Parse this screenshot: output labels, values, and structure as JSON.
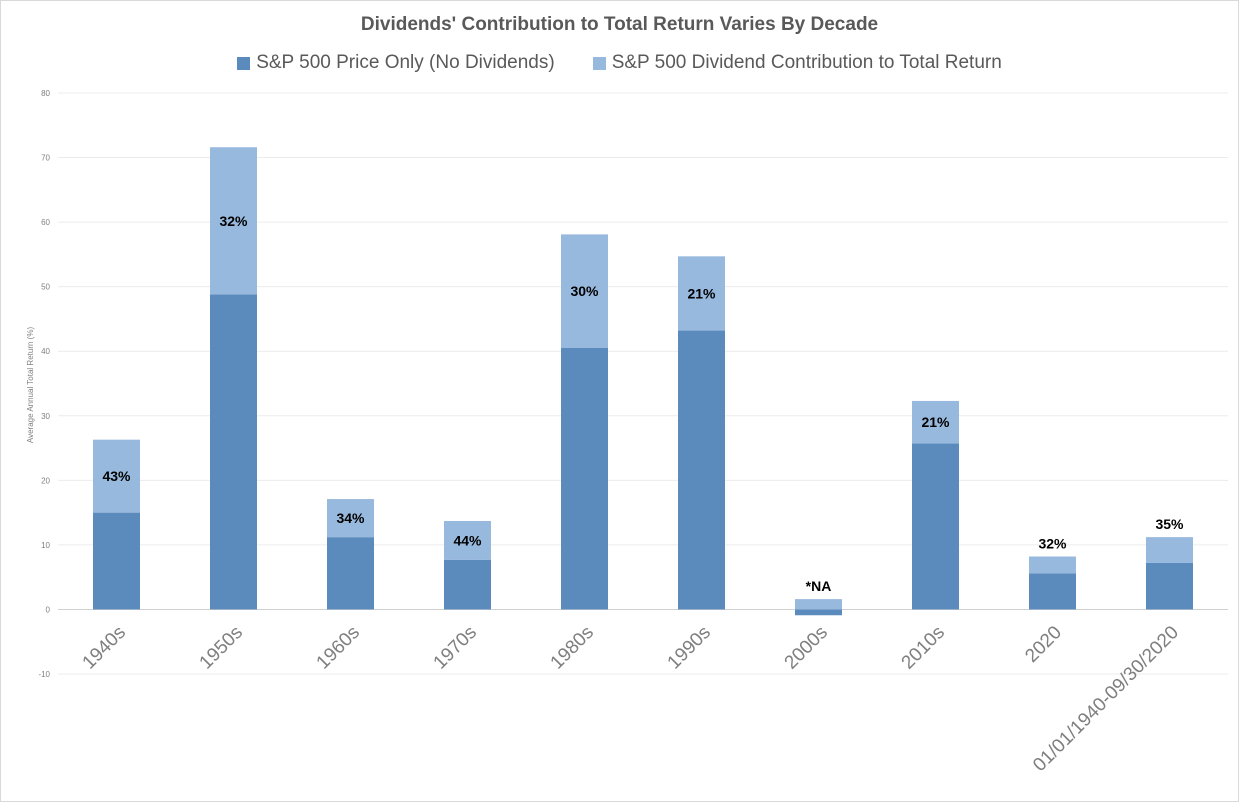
{
  "chart_data": {
    "type": "bar",
    "stacked": true,
    "title": "Dividends' Contribution to Total Return Varies By Decade",
    "ylabel": "Average Annual Total Return (%)",
    "xlabel": "",
    "ylim": [
      -10,
      80
    ],
    "yticks": [
      -10,
      0,
      10,
      20,
      30,
      40,
      50,
      60,
      70,
      80
    ],
    "grid": true,
    "legend_position": "top",
    "categories": [
      "1940s",
      "1950s",
      "1960s",
      "1970s",
      "1980s",
      "1990s",
      "2000s",
      "2010s",
      "2020",
      "01/01/1940-09/30/2020"
    ],
    "series": [
      {
        "name": "S&P 500 Price Only (No Dividends)",
        "color": "#5b8bbd",
        "values": [
          15,
          48.8,
          11.2,
          7.7,
          40.5,
          43.2,
          -0.9,
          25.7,
          5.6,
          7.2
        ]
      },
      {
        "name": "S&P 500 Dividend Contribution to Total Return",
        "color": "#98b9de",
        "values": [
          11.3,
          22.8,
          5.9,
          6.0,
          17.6,
          11.5,
          1.6,
          6.6,
          2.6,
          4.0
        ]
      }
    ],
    "data_labels": [
      "43%",
      "32%",
      "34%",
      "44%",
      "30%",
      "21%",
      "*NA",
      "21%",
      "32%",
      "35%"
    ]
  }
}
